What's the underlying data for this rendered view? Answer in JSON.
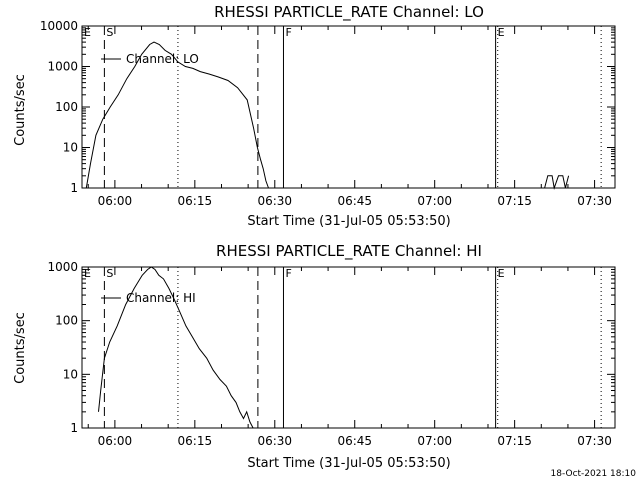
{
  "footer": {
    "timestamp": "18-Oct-2021 18:10"
  },
  "chart_data": [
    {
      "type": "line",
      "title": "RHESSI PARTICLE_RATE Channel: LO",
      "xlabel": "Start Time (31-Jul-05 05:53:50)",
      "ylabel": "Counts/sec",
      "x_unit": "minutes since 05:53:50",
      "xlim": [
        0,
        100
      ],
      "ylim": [
        1,
        10000
      ],
      "yscale": "log",
      "xticks": [
        {
          "label": "06:00",
          "value": 6.17
        },
        {
          "label": "06:15",
          "value": 21.17
        },
        {
          "label": "06:30",
          "value": 36.17
        },
        {
          "label": "06:45",
          "value": 51.17
        },
        {
          "label": "07:00",
          "value": 66.17
        },
        {
          "label": "07:15",
          "value": 81.17
        },
        {
          "label": "07:30",
          "value": 96.17
        }
      ],
      "yticks": [
        {
          "label": "1",
          "value": 1
        },
        {
          "label": "10",
          "value": 10
        },
        {
          "label": "100",
          "value": 100
        },
        {
          "label": "1000",
          "value": 1000
        },
        {
          "label": "10000",
          "value": 10000
        }
      ],
      "series": [
        {
          "name": "Channel: LO",
          "x": [
            0.8,
            1.6,
            2.6,
            3.9,
            5.3,
            6.8,
            8.4,
            9.9,
            11.2,
            12.7,
            13.5,
            14.5,
            15.6,
            16.8,
            18.0,
            19.4,
            20.8,
            22.2,
            23.9,
            25.6,
            27.4,
            29.2,
            31.0,
            32.2,
            32.9,
            33.5,
            34.0,
            34.5,
            35.0
          ],
          "values": [
            1,
            4,
            20,
            50,
            100,
            200,
            500,
            1000,
            2000,
            3500,
            4000,
            3500,
            2500,
            2000,
            1300,
            1000,
            900,
            750,
            650,
            550,
            450,
            300,
            150,
            30,
            10,
            5,
            3,
            1.5,
            1
          ]
        },
        {
          "name": "Channel: LO",
          "x": [
            86.8,
            87.4,
            88.2,
            88.6,
            89.4,
            90.2,
            90.7,
            91.3
          ],
          "values": [
            1,
            2,
            2,
            1,
            2,
            2,
            1,
            2
          ]
        }
      ],
      "markers": [
        {
          "label": "E",
          "x": 0.0,
          "style": "dashed"
        },
        {
          "label": "S",
          "x": 4.2,
          "style": "dashed"
        },
        {
          "label": "",
          "x": 18.0,
          "style": "dotted"
        },
        {
          "label": "",
          "x": 33.0,
          "style": "dashed"
        },
        {
          "label": "F",
          "x": 37.8,
          "style": "solid"
        },
        {
          "label": "E",
          "x": 77.6,
          "style": "solid"
        },
        {
          "label": "",
          "x": 78.0,
          "style": "dotted"
        },
        {
          "label": "",
          "x": 97.4,
          "style": "dotted"
        }
      ]
    },
    {
      "type": "line",
      "title": "RHESSI PARTICLE_RATE Channel: HI",
      "xlabel": "Start Time (31-Jul-05 05:53:50)",
      "ylabel": "Counts/sec",
      "x_unit": "minutes since 05:53:50",
      "xlim": [
        0,
        100
      ],
      "ylim": [
        1,
        1000
      ],
      "yscale": "log",
      "xticks": [
        {
          "label": "06:00",
          "value": 6.17
        },
        {
          "label": "06:15",
          "value": 21.17
        },
        {
          "label": "06:30",
          "value": 36.17
        },
        {
          "label": "06:45",
          "value": 51.17
        },
        {
          "label": "07:00",
          "value": 66.17
        },
        {
          "label": "07:15",
          "value": 81.17
        },
        {
          "label": "07:30",
          "value": 96.17
        }
      ],
      "yticks": [
        {
          "label": "1",
          "value": 1
        },
        {
          "label": "10",
          "value": 10
        },
        {
          "label": "100",
          "value": 100
        },
        {
          "label": "1000",
          "value": 1000
        }
      ],
      "series": [
        {
          "name": "Channel: HI",
          "x": [
            3.1,
            3.5,
            4.2,
            5.2,
            6.6,
            8.2,
            9.8,
            11.3,
            12.3,
            13.0,
            13.7,
            14.4,
            15.3,
            16.3,
            17.3,
            18.3,
            19.5,
            20.7,
            22.0,
            23.4,
            24.6,
            25.9,
            27.1,
            28.0,
            28.9,
            29.6,
            30.3,
            30.9,
            31.5,
            32.1
          ],
          "values": [
            2,
            5,
            20,
            40,
            80,
            200,
            400,
            700,
            900,
            1000,
            900,
            700,
            600,
            400,
            250,
            150,
            80,
            50,
            30,
            20,
            12,
            8,
            6,
            4,
            3,
            2,
            1.5,
            2,
            1.3,
            1
          ]
        }
      ],
      "markers": [
        {
          "label": "E",
          "x": 0.0,
          "style": "dashed"
        },
        {
          "label": "S",
          "x": 4.2,
          "style": "dashed"
        },
        {
          "label": "",
          "x": 18.0,
          "style": "dotted"
        },
        {
          "label": "",
          "x": 33.0,
          "style": "dashed"
        },
        {
          "label": "F",
          "x": 37.8,
          "style": "solid"
        },
        {
          "label": "E",
          "x": 77.6,
          "style": "solid"
        },
        {
          "label": "",
          "x": 78.0,
          "style": "dotted"
        },
        {
          "label": "",
          "x": 97.4,
          "style": "dotted"
        }
      ]
    }
  ]
}
